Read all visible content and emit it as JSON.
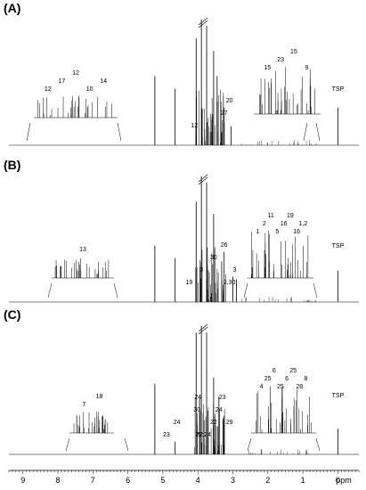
{
  "chart_data": {
    "type": "line",
    "xlabel": "ppm",
    "x_axis": {
      "ticks": [
        "9",
        "8",
        "7",
        "6",
        "5",
        "4",
        "3",
        "2",
        "1",
        "0"
      ],
      "tick_values": [
        9,
        8,
        7,
        6,
        5,
        4,
        3,
        2,
        1,
        0
      ],
      "range": [
        9.4,
        -0.6
      ],
      "direction": "decreasing"
    },
    "panels": [
      {
        "label": "(A)",
        "peaks": [
          {
            "ppm": 5.23,
            "h": 0.55
          },
          {
            "ppm": 4.65,
            "h": 0.45
          },
          {
            "ppm": 4.05,
            "h": 0.85
          },
          {
            "ppm": 3.9,
            "h": 1.0
          },
          {
            "ppm": 3.75,
            "h": 0.95
          },
          {
            "ppm": 3.55,
            "h": 0.75
          },
          {
            "ppm": 3.45,
            "h": 0.55
          },
          {
            "ppm": 3.25,
            "h": 0.3
          },
          {
            "ppm": 3.05,
            "h": 0.15
          },
          {
            "ppm": 0.0,
            "h": 0.3
          }
        ],
        "annotations": [
          {
            "text": "12",
            "ppm": 4.1
          },
          {
            "text": "27",
            "ppm": 3.25
          },
          {
            "text": "20",
            "ppm": 3.1
          },
          {
            "text": "TSP",
            "ppm": 0.0
          }
        ],
        "insets": [
          {
            "side": "left",
            "labels": [
              "12",
              "17",
              "12",
              "10",
              "14"
            ]
          },
          {
            "side": "right",
            "labels": [
              "15",
              "23",
              "15",
              "9"
            ]
          }
        ]
      },
      {
        "label": "(B)",
        "peaks": [
          {
            "ppm": 5.23,
            "h": 0.45
          },
          {
            "ppm": 4.65,
            "h": 0.35
          },
          {
            "ppm": 4.05,
            "h": 0.8
          },
          {
            "ppm": 3.9,
            "h": 1.0
          },
          {
            "ppm": 3.75,
            "h": 0.95
          },
          {
            "ppm": 3.55,
            "h": 0.7
          },
          {
            "ppm": 3.25,
            "h": 0.4
          },
          {
            "ppm": 3.0,
            "h": 0.2
          },
          {
            "ppm": 2.9,
            "h": 0.18
          },
          {
            "ppm": 0.0,
            "h": 0.25
          }
        ],
        "annotations": [
          {
            "text": "19",
            "ppm": 4.25
          },
          {
            "text": "3",
            "ppm": 3.9
          },
          {
            "text": "30",
            "ppm": 3.55
          },
          {
            "text": "26",
            "ppm": 3.25
          },
          {
            "text": "2,30",
            "ppm": 3.1
          },
          {
            "text": "3",
            "ppm": 2.95
          },
          {
            "text": "TSP",
            "ppm": 0.0
          }
        ],
        "insets": [
          {
            "side": "left",
            "labels": [
              "13"
            ]
          },
          {
            "side": "right",
            "labels": [
              "1",
              "2",
              "11",
              "5",
              "16",
              "19",
              "16",
              "1,2"
            ]
          }
        ]
      },
      {
        "label": "(C)",
        "peaks": [
          {
            "ppm": 5.23,
            "h": 0.55
          },
          {
            "ppm": 4.65,
            "h": 0.1
          },
          {
            "ppm": 4.05,
            "h": 0.95
          },
          {
            "ppm": 3.9,
            "h": 1.0
          },
          {
            "ppm": 3.75,
            "h": 0.95
          },
          {
            "ppm": 3.55,
            "h": 0.6
          },
          {
            "ppm": 3.4,
            "h": 0.45
          },
          {
            "ppm": 3.25,
            "h": 0.3
          },
          {
            "ppm": 0.0,
            "h": 0.2
          }
        ],
        "annotations": [
          {
            "text": "22,24",
            "ppm": 3.85
          },
          {
            "text": "24",
            "ppm": 4.6
          },
          {
            "text": "30,",
            "ppm": 4.0
          },
          {
            "text": "24",
            "ppm": 4.0
          },
          {
            "text": "22",
            "ppm": 3.95
          },
          {
            "text": "22",
            "ppm": 3.55
          },
          {
            "text": "24",
            "ppm": 3.4
          },
          {
            "text": "23",
            "ppm": 3.3
          },
          {
            "text": "23",
            "ppm": 4.9
          },
          {
            "text": "29",
            "ppm": 3.1
          },
          {
            "text": "TSP",
            "ppm": 0.0
          }
        ],
        "insets": [
          {
            "side": "left",
            "labels": [
              "7",
              "18"
            ]
          },
          {
            "side": "right",
            "labels": [
              "4",
              "25",
              "6",
              "25",
              "6",
              "25",
              "28",
              "8"
            ]
          }
        ]
      }
    ]
  }
}
